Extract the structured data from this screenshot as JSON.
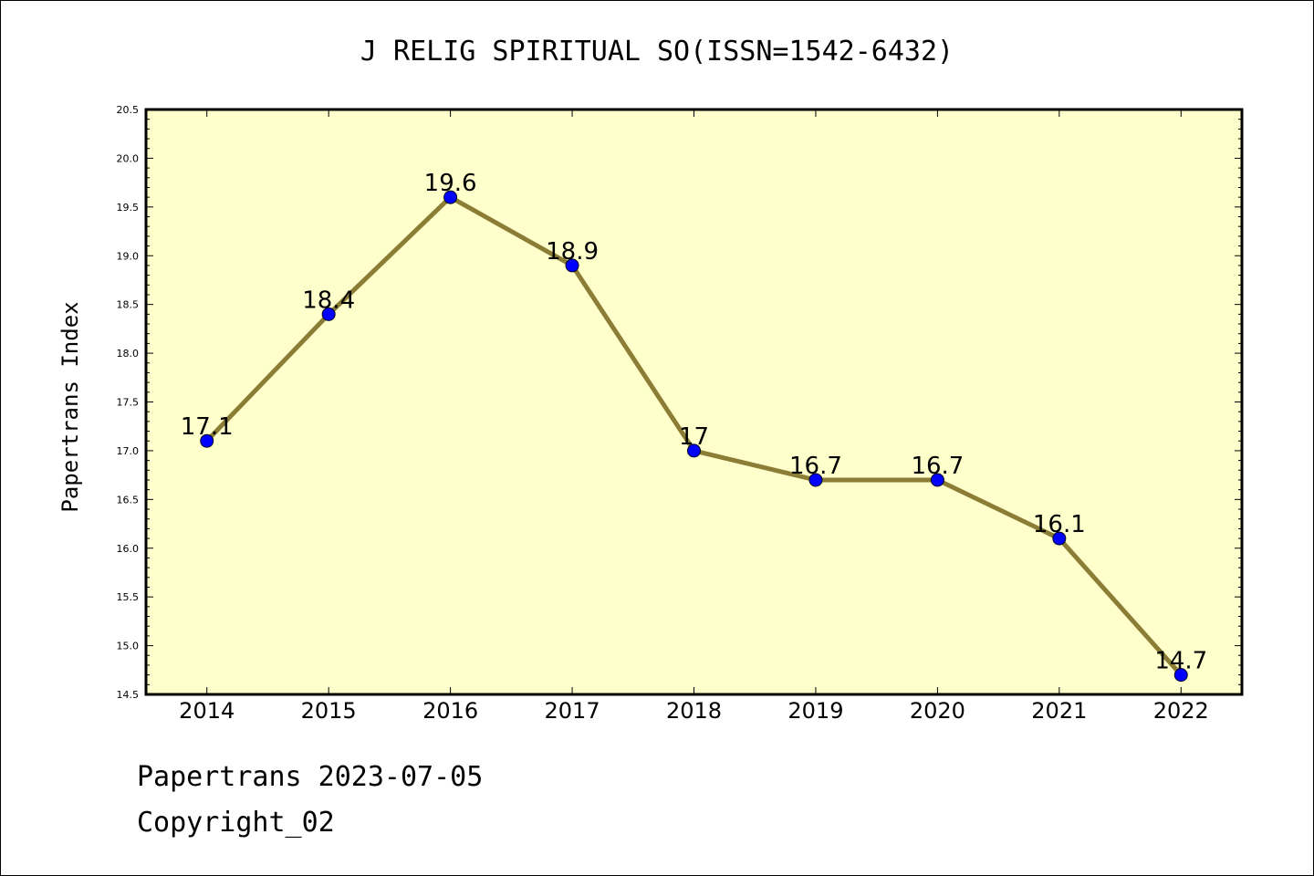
{
  "chart_data": {
    "type": "line",
    "title": "J RELIG SPIRITUAL SO(ISSN=1542-6432)",
    "xlabel": "",
    "ylabel": "Papertrans Index",
    "categories": [
      "2014",
      "2015",
      "2016",
      "2017",
      "2018",
      "2019",
      "2020",
      "2021",
      "2022"
    ],
    "series": [
      {
        "values": [
          17.1,
          18.4,
          19.6,
          18.9,
          17.0,
          16.7,
          16.7,
          16.1,
          14.7
        ],
        "labels": [
          "17.1",
          "18.4",
          "19.6",
          "18.9",
          "17",
          "16.7",
          "16.7",
          "16.1",
          "14.7"
        ]
      }
    ],
    "ylim": [
      14.5,
      20.5
    ],
    "yticks": [
      "14.5",
      "15.0",
      "15.5",
      "16.0",
      "16.5",
      "17.0",
      "17.5",
      "18.0",
      "18.5",
      "19.0",
      "19.5",
      "20.0",
      "20.5"
    ],
    "grid": false,
    "legend": "none",
    "colors": {
      "plot_background": "#ffffcc",
      "line": "#8b7d35",
      "marker": "#0000ff"
    }
  },
  "footer": {
    "source": "Papertrans 2023-07-05",
    "copyright": "Copyright_02"
  }
}
